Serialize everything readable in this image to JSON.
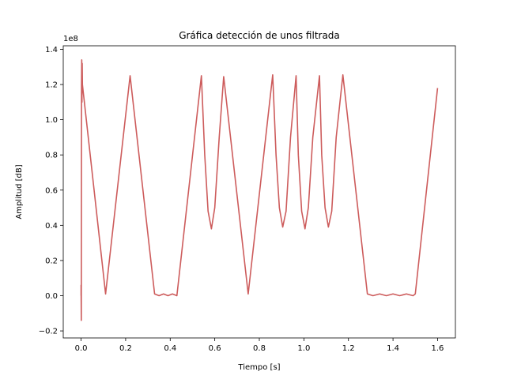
{
  "chart_data": {
    "type": "line",
    "title": "Gráfica detección de unos filtrada",
    "xlabel": "Tiempo [s]",
    "ylabel": "Amplitud [dB]",
    "y_offset_label": "1e8",
    "xlim": [
      -0.08,
      1.68
    ],
    "ylim": [
      -0.24,
      1.42
    ],
    "x_ticks": [
      0.0,
      0.2,
      0.4,
      0.6,
      0.8,
      1.0,
      1.2,
      1.4,
      1.6
    ],
    "x_tick_labels": [
      "0.0",
      "0.2",
      "0.4",
      "0.6",
      "0.8",
      "1.0",
      "1.2",
      "1.4",
      "1.6"
    ],
    "y_ticks": [
      -0.2,
      0.0,
      0.2,
      0.4,
      0.6,
      0.8,
      1.0,
      1.2,
      1.4
    ],
    "y_tick_labels": [
      "−0.2",
      "0.0",
      "0.2",
      "0.4",
      "0.6",
      "0.8",
      "1.0",
      "1.2",
      "1.4"
    ],
    "grid": false,
    "series": [
      {
        "color": "#cd5c5c",
        "points": [
          [
            0.0,
            0.0
          ],
          [
            0.0,
            0.06
          ],
          [
            0.001,
            -0.14
          ],
          [
            0.002,
            1.2
          ],
          [
            0.003,
            1.34
          ],
          [
            0.004,
            1.1
          ],
          [
            0.005,
            1.32
          ],
          [
            0.006,
            1.2
          ],
          [
            0.11,
            0.01
          ],
          [
            0.22,
            1.25
          ],
          [
            0.33,
            0.01
          ],
          [
            0.35,
            0.0
          ],
          [
            0.37,
            0.01
          ],
          [
            0.39,
            0.0
          ],
          [
            0.41,
            0.01
          ],
          [
            0.43,
            0.0
          ],
          [
            0.54,
            1.25
          ],
          [
            0.555,
            0.8
          ],
          [
            0.57,
            0.48
          ],
          [
            0.585,
            0.38
          ],
          [
            0.6,
            0.5
          ],
          [
            0.62,
            0.9
          ],
          [
            0.64,
            1.245
          ],
          [
            0.75,
            0.01
          ],
          [
            0.86,
            1.255
          ],
          [
            0.875,
            0.8
          ],
          [
            0.89,
            0.5
          ],
          [
            0.905,
            0.39
          ],
          [
            0.92,
            0.48
          ],
          [
            0.94,
            0.9
          ],
          [
            0.965,
            1.25
          ],
          [
            0.975,
            0.8
          ],
          [
            0.99,
            0.48
          ],
          [
            1.005,
            0.38
          ],
          [
            1.02,
            0.5
          ],
          [
            1.04,
            0.9
          ],
          [
            1.07,
            1.25
          ],
          [
            1.08,
            0.8
          ],
          [
            1.095,
            0.5
          ],
          [
            1.11,
            0.39
          ],
          [
            1.125,
            0.48
          ],
          [
            1.145,
            0.9
          ],
          [
            1.175,
            1.255
          ],
          [
            1.285,
            0.01
          ],
          [
            1.31,
            0.0
          ],
          [
            1.34,
            0.01
          ],
          [
            1.37,
            0.0
          ],
          [
            1.4,
            0.01
          ],
          [
            1.43,
            0.0
          ],
          [
            1.46,
            0.01
          ],
          [
            1.49,
            0.0
          ],
          [
            1.5,
            0.01
          ],
          [
            1.6,
            1.18
          ]
        ]
      }
    ]
  }
}
